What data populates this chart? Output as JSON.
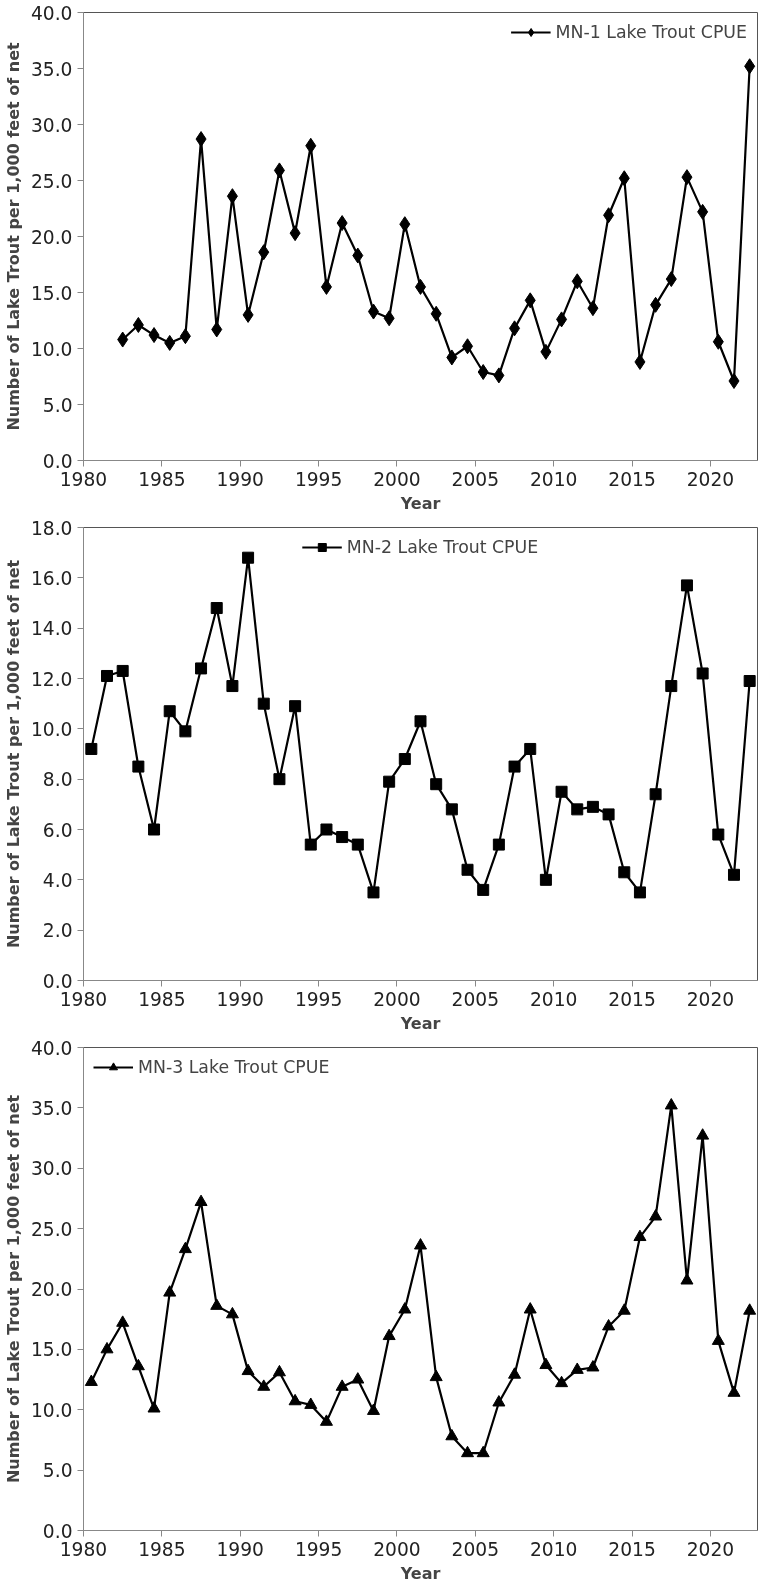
{
  "chart_data": [
    {
      "type": "line",
      "xlabel": "Year",
      "ylabel": "Number of Lake Trout per 1,000 feet of net",
      "marker": "diamond",
      "legend": "top right",
      "grid": false,
      "xlim": [
        1980,
        2023
      ],
      "xticks": [
        1980,
        1985,
        1990,
        1995,
        2000,
        2005,
        2010,
        2015,
        2020
      ],
      "ylim": [
        0,
        40
      ],
      "yticks": [
        {
          "value": 0,
          "label": "0.0"
        },
        {
          "value": 5,
          "label": "5.0"
        },
        {
          "value": 10,
          "label": "10.0"
        },
        {
          "value": 15,
          "label": "15.0"
        },
        {
          "value": 20,
          "label": "20.0"
        },
        {
          "value": 25,
          "label": "25.0"
        },
        {
          "value": 30,
          "label": "30.0"
        },
        {
          "value": 35,
          "label": "35.0"
        },
        {
          "value": 40,
          "label": "40.0"
        }
      ],
      "x": [
        1982.5,
        1983.5,
        1984.5,
        1985.5,
        1986.5,
        1987.5,
        1988.5,
        1989.5,
        1990.5,
        1991.5,
        1992.5,
        1993.5,
        1994.5,
        1995.5,
        1996.5,
        1997.5,
        1998.5,
        1999.5,
        2000.5,
        2001.5,
        2002.5,
        2003.5,
        2004.5,
        2005.5,
        2006.5,
        2007.5,
        2008.5,
        2009.5,
        2010.5,
        2011.5,
        2012.5,
        2013.5,
        2014.5,
        2015.5,
        2016.5,
        2017.5,
        2018.5,
        2019.5,
        2020.5,
        2021.5,
        2022.5
      ],
      "series": [
        {
          "name": "MN-1 Lake Trout CPUE",
          "color": "#000000",
          "values": [
            10.8,
            12.1,
            11.2,
            10.5,
            11.1,
            28.7,
            11.7,
            23.6,
            13.0,
            18.6,
            25.9,
            20.3,
            28.1,
            15.5,
            21.2,
            18.3,
            13.3,
            12.7,
            21.1,
            15.5,
            13.1,
            9.2,
            10.2,
            7.9,
            7.6,
            11.8,
            14.3,
            9.7,
            12.6,
            16.0,
            13.6,
            21.9,
            25.2,
            8.8,
            13.9,
            16.2,
            25.3,
            22.2,
            10.6,
            7.1,
            35.2
          ]
        }
      ]
    },
    {
      "type": "line",
      "xlabel": "Year",
      "ylabel": "Number of Lake Trout per 1,000 feet of net",
      "marker": "square",
      "legend": "top",
      "grid": false,
      "xlim": [
        1980,
        2023
      ],
      "xticks": [
        1980,
        1985,
        1990,
        1995,
        2000,
        2005,
        2010,
        2015,
        2020
      ],
      "ylim": [
        0,
        18
      ],
      "yticks": [
        {
          "value": 0,
          "label": "0.0"
        },
        {
          "value": 2,
          "label": "2.0"
        },
        {
          "value": 4,
          "label": "4.0"
        },
        {
          "value": 6,
          "label": "6.0"
        },
        {
          "value": 8,
          "label": "8.0"
        },
        {
          "value": 10,
          "label": "10.0"
        },
        {
          "value": 12,
          "label": "12.0"
        },
        {
          "value": 14,
          "label": "14.0"
        },
        {
          "value": 16,
          "label": "16.0"
        },
        {
          "value": 18,
          "label": "18.0"
        }
      ],
      "x": [
        1980.5,
        1981.5,
        1982.5,
        1983.5,
        1984.5,
        1985.5,
        1986.5,
        1987.5,
        1988.5,
        1989.5,
        1990.5,
        1991.5,
        1992.5,
        1993.5,
        1994.5,
        1995.5,
        1996.5,
        1997.5,
        1998.5,
        1999.5,
        2000.5,
        2001.5,
        2002.5,
        2003.5,
        2004.5,
        2005.5,
        2006.5,
        2007.5,
        2008.5,
        2009.5,
        2010.5,
        2011.5,
        2012.5,
        2013.5,
        2014.5,
        2015.5,
        2016.5,
        2017.5,
        2018.5,
        2019.5,
        2020.5,
        2021.5,
        2022.5
      ],
      "series": [
        {
          "name": "MN-2 Lake Trout CPUE",
          "color": "#000000",
          "values": [
            9.2,
            12.1,
            12.3,
            8.5,
            6.0,
            10.7,
            9.9,
            12.4,
            14.8,
            11.7,
            16.8,
            11.0,
            8.0,
            10.9,
            5.4,
            6.0,
            5.7,
            5.4,
            3.5,
            7.9,
            8.8,
            10.3,
            7.8,
            6.8,
            4.4,
            3.6,
            5.4,
            8.5,
            9.2,
            4.0,
            7.5,
            6.8,
            6.9,
            6.6,
            4.3,
            3.5,
            7.4,
            11.7,
            15.7,
            12.2,
            5.8,
            4.2,
            11.9
          ]
        }
      ]
    },
    {
      "type": "line",
      "xlabel": "Year",
      "ylabel": "Number of Lake Trout per 1,000 feet of net",
      "marker": "triangle",
      "legend": "top left",
      "grid": false,
      "xlim": [
        1980,
        2023
      ],
      "xticks": [
        1980,
        1985,
        1990,
        1995,
        2000,
        2005,
        2010,
        2015,
        2020
      ],
      "ylim": [
        0,
        40
      ],
      "yticks": [
        {
          "value": 0,
          "label": "0.0"
        },
        {
          "value": 5,
          "label": "5.0"
        },
        {
          "value": 10,
          "label": "10.0"
        },
        {
          "value": 15,
          "label": "15.0"
        },
        {
          "value": 20,
          "label": "20.0"
        },
        {
          "value": 25,
          "label": "25.0"
        },
        {
          "value": 30,
          "label": "30.0"
        },
        {
          "value": 35,
          "label": "35.0"
        },
        {
          "value": 40,
          "label": "40.0"
        }
      ],
      "x": [
        1980.5,
        1981.5,
        1982.5,
        1983.5,
        1984.5,
        1985.5,
        1986.5,
        1987.5,
        1988.5,
        1989.5,
        1990.5,
        1991.5,
        1992.5,
        1993.5,
        1994.5,
        1995.5,
        1996.5,
        1997.5,
        1998.5,
        1999.5,
        2000.5,
        2001.5,
        2002.5,
        2003.5,
        2004.5,
        2005.5,
        2006.5,
        2007.5,
        2008.5,
        2009.5,
        2010.5,
        2011.5,
        2012.5,
        2013.5,
        2014.5,
        2015.5,
        2016.5,
        2017.5,
        2018.5,
        2019.5,
        2020.5,
        2021.5,
        2022.5
      ],
      "series": [
        {
          "name": "MN-3 Lake Trout CPUE",
          "color": "#000000",
          "values": [
            12.3,
            15.0,
            17.2,
            13.6,
            10.1,
            19.7,
            23.3,
            27.2,
            18.6,
            17.9,
            13.2,
            11.9,
            13.1,
            10.7,
            10.4,
            9.0,
            11.9,
            12.5,
            9.9,
            16.1,
            18.3,
            23.6,
            12.7,
            7.8,
            6.4,
            6.4,
            10.6,
            12.9,
            18.3,
            13.7,
            12.2,
            13.3,
            13.5,
            16.9,
            18.2,
            24.3,
            26.0,
            35.2,
            20.7,
            32.7,
            15.7,
            11.4,
            18.2
          ]
        }
      ]
    }
  ]
}
